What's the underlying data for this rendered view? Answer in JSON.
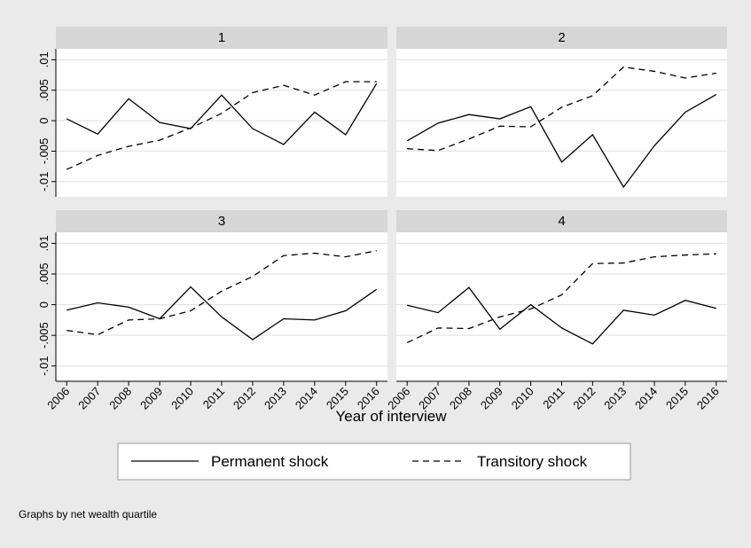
{
  "chart_data": {
    "type": "line",
    "x": [
      2006,
      2007,
      2008,
      2009,
      2010,
      2011,
      2012,
      2013,
      2014,
      2015,
      2016
    ],
    "xlim": [
      2005.65,
      2016.35
    ],
    "xticks": [
      2006,
      2007,
      2008,
      2009,
      2010,
      2011,
      2012,
      2013,
      2014,
      2015,
      2016
    ],
    "ylim": [
      -0.0125,
      0.0118
    ],
    "yticks": [
      {
        "value": -0.01,
        "label": "-.01"
      },
      {
        "value": -0.005,
        "label": "-.005"
      },
      0,
      {
        "value": 0.005,
        "label": ".005"
      },
      {
        "value": 0.01,
        "label": ".01"
      }
    ],
    "grid": true,
    "x_label": "Year of interview",
    "note": "Graphs by net wealth quartile",
    "series": [
      {
        "name": "Permanent shock",
        "color": "#000000",
        "style": "solid"
      },
      {
        "name": "Transitory shock",
        "color": "#000000",
        "style": "dashed"
      }
    ],
    "panels": [
      {
        "title": "1",
        "values": [
          [
            0.0003,
            -0.0022,
            0.0036,
            -0.0003,
            -0.0013,
            0.0042,
            -0.0013,
            -0.0039,
            0.0014,
            -0.0023,
            0.0061
          ],
          [
            -0.008,
            -0.0057,
            -0.0042,
            -0.0032,
            -0.0012,
            0.0012,
            0.0046,
            0.0058,
            0.0042,
            0.0064,
            0.0064
          ]
        ]
      },
      {
        "title": "2",
        "values": [
          [
            -0.0033,
            -0.0004,
            0.001,
            0.0003,
            0.0023,
            -0.0068,
            -0.0023,
            -0.0109,
            -0.0041,
            0.0014,
            0.0043
          ],
          [
            -0.0046,
            -0.0049,
            -0.003,
            -0.0009,
            -0.001,
            0.0022,
            0.0041,
            0.0088,
            0.0081,
            0.007,
            0.0078
          ]
        ]
      },
      {
        "title": "3",
        "values": [
          [
            -0.0009,
            0.0003,
            -0.0004,
            -0.0023,
            0.0029,
            -0.002,
            -0.0057,
            -0.0023,
            -0.0025,
            -0.001,
            0.0025
          ],
          [
            -0.0042,
            -0.0049,
            -0.0025,
            -0.0023,
            -0.001,
            0.0022,
            0.0046,
            0.008,
            0.0084,
            0.0078,
            0.0088
          ]
        ]
      },
      {
        "title": "4",
        "values": [
          [
            -0.0001,
            -0.0013,
            0.0028,
            -0.004,
            0,
            -0.0038,
            -0.0064,
            -0.0009,
            -0.0017,
            0.0007,
            -0.0006
          ],
          [
            -0.0062,
            -0.0038,
            -0.0039,
            -0.002,
            -0.0007,
            0.0016,
            0.0067,
            0.0068,
            0.0078,
            0.0081,
            0.0083
          ]
        ]
      }
    ]
  }
}
